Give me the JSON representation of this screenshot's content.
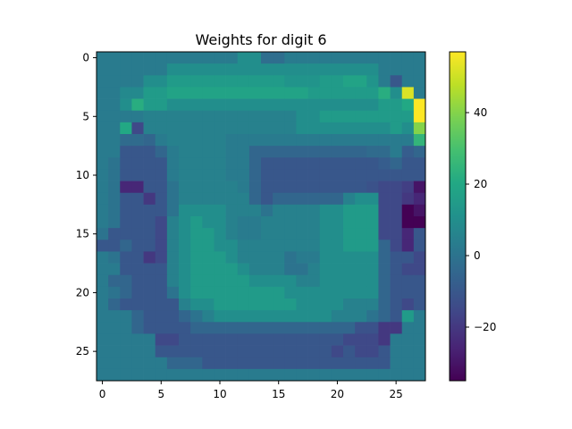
{
  "chart_data": {
    "type": "heatmap",
    "title": "Weights for digit 6",
    "colormap": "viridis",
    "rows": 28,
    "cols": 28,
    "x_ticks": [
      0,
      5,
      10,
      15,
      20,
      25
    ],
    "y_ticks": [
      0,
      5,
      10,
      15,
      20,
      25
    ],
    "colorbar": {
      "min": -35,
      "max": 57,
      "ticks": [
        -20,
        0,
        20,
        40
      ]
    },
    "grid": false,
    "legend": "colorbar-right",
    "values": [
      [
        3,
        3,
        3,
        3,
        3,
        3,
        3,
        3,
        3,
        3,
        3,
        3,
        10,
        10,
        -2,
        -2,
        3,
        3,
        3,
        3,
        3,
        3,
        3,
        3,
        3,
        3,
        3,
        3
      ],
      [
        3,
        3,
        3,
        3,
        3,
        3,
        10,
        10,
        10,
        10,
        10,
        10,
        10,
        10,
        10,
        10,
        10,
        10,
        10,
        10,
        10,
        10,
        10,
        10,
        3,
        3,
        3,
        3
      ],
      [
        3,
        3,
        3,
        3,
        10,
        10,
        15,
        15,
        15,
        15,
        15,
        15,
        15,
        15,
        15,
        15,
        12,
        12,
        12,
        15,
        15,
        18,
        18,
        12,
        3,
        -10,
        3,
        3
      ],
      [
        3,
        3,
        8,
        8,
        15,
        15,
        18,
        18,
        18,
        18,
        18,
        18,
        18,
        18,
        18,
        18,
        18,
        18,
        15,
        15,
        15,
        15,
        15,
        15,
        22,
        10,
        52,
        3
      ],
      [
        3,
        3,
        10,
        22,
        15,
        15,
        10,
        10,
        10,
        10,
        10,
        10,
        10,
        10,
        10,
        10,
        10,
        10,
        10,
        10,
        10,
        10,
        10,
        10,
        15,
        15,
        20,
        57
      ],
      [
        3,
        3,
        3,
        3,
        5,
        5,
        5,
        5,
        5,
        5,
        5,
        5,
        5,
        5,
        5,
        5,
        5,
        10,
        10,
        15,
        15,
        15,
        15,
        15,
        15,
        15,
        15,
        57
      ],
      [
        3,
        3,
        20,
        -15,
        5,
        5,
        5,
        5,
        5,
        5,
        5,
        5,
        5,
        5,
        5,
        5,
        5,
        10,
        10,
        10,
        10,
        10,
        10,
        10,
        10,
        15,
        10,
        40
      ],
      [
        3,
        3,
        -3,
        -3,
        -5,
        3,
        5,
        5,
        5,
        5,
        5,
        3,
        3,
        3,
        3,
        3,
        3,
        3,
        3,
        3,
        3,
        3,
        3,
        3,
        3,
        3,
        3,
        25
      ],
      [
        3,
        3,
        -10,
        -10,
        -10,
        -5,
        3,
        5,
        5,
        5,
        5,
        3,
        3,
        -5,
        -5,
        -5,
        -5,
        -5,
        -5,
        -5,
        -5,
        -5,
        -5,
        -3,
        -3,
        3,
        -8,
        -5
      ],
      [
        3,
        0,
        -10,
        -10,
        -10,
        -10,
        3,
        5,
        5,
        5,
        5,
        3,
        3,
        -5,
        -10,
        -10,
        -10,
        -10,
        -10,
        -10,
        -10,
        -10,
        -10,
        -10,
        -8,
        -5,
        -10,
        -10
      ],
      [
        3,
        0,
        -10,
        -10,
        -10,
        -10,
        3,
        5,
        5,
        5,
        5,
        3,
        3,
        -5,
        -10,
        -10,
        -10,
        -10,
        -10,
        -10,
        -10,
        -10,
        -10,
        -10,
        -10,
        -10,
        -10,
        -10
      ],
      [
        3,
        0,
        -25,
        -25,
        -10,
        -10,
        0,
        5,
        5,
        5,
        5,
        5,
        3,
        -5,
        -10,
        -10,
        -10,
        -10,
        -10,
        -10,
        -10,
        -10,
        -10,
        -12,
        -15,
        -15,
        -18,
        -30
      ],
      [
        3,
        0,
        -10,
        -10,
        -20,
        -10,
        0,
        5,
        5,
        5,
        5,
        5,
        5,
        -5,
        -10,
        -5,
        -5,
        -5,
        -5,
        -5,
        -5,
        5,
        10,
        10,
        -15,
        -15,
        -20,
        -25
      ],
      [
        3,
        0,
        -10,
        -10,
        -10,
        -10,
        0,
        10,
        10,
        10,
        10,
        5,
        5,
        5,
        0,
        5,
        5,
        5,
        5,
        10,
        10,
        15,
        15,
        15,
        -15,
        -15,
        -35,
        -30
      ],
      [
        3,
        0,
        -10,
        -10,
        -10,
        -15,
        5,
        10,
        15,
        10,
        10,
        5,
        3,
        3,
        5,
        5,
        5,
        5,
        5,
        10,
        10,
        15,
        15,
        15,
        -15,
        -15,
        -35,
        -35
      ],
      [
        0,
        -10,
        -10,
        -10,
        -10,
        -15,
        5,
        10,
        15,
        15,
        10,
        5,
        3,
        3,
        5,
        5,
        5,
        5,
        5,
        10,
        10,
        15,
        15,
        15,
        -15,
        -15,
        -25,
        -10
      ],
      [
        -10,
        -10,
        -5,
        -10,
        -10,
        -15,
        5,
        10,
        15,
        15,
        10,
        10,
        5,
        5,
        5,
        5,
        5,
        5,
        5,
        10,
        10,
        15,
        15,
        15,
        -5,
        -15,
        -25,
        -10
      ],
      [
        3,
        0,
        -10,
        -10,
        -20,
        -15,
        5,
        10,
        15,
        15,
        15,
        10,
        5,
        5,
        5,
        5,
        0,
        3,
        3,
        10,
        10,
        10,
        10,
        10,
        -5,
        -10,
        -10,
        -15
      ],
      [
        3,
        3,
        -10,
        -10,
        -10,
        -10,
        5,
        10,
        15,
        15,
        15,
        15,
        10,
        5,
        5,
        5,
        0,
        0,
        5,
        10,
        10,
        10,
        10,
        10,
        -5,
        -10,
        -15,
        -15
      ],
      [
        3,
        -5,
        -5,
        -10,
        -10,
        -10,
        5,
        10,
        15,
        15,
        15,
        15,
        15,
        10,
        10,
        10,
        10,
        5,
        5,
        10,
        10,
        10,
        10,
        10,
        -5,
        -10,
        -10,
        -10
      ],
      [
        3,
        0,
        -5,
        -10,
        -10,
        -10,
        0,
        10,
        15,
        15,
        15,
        15,
        15,
        15,
        15,
        15,
        10,
        10,
        10,
        10,
        10,
        10,
        10,
        10,
        -5,
        -10,
        -10,
        -10
      ],
      [
        3,
        -5,
        -10,
        -10,
        -10,
        -10,
        -10,
        5,
        10,
        10,
        15,
        15,
        15,
        15,
        15,
        15,
        15,
        10,
        10,
        10,
        10,
        5,
        5,
        5,
        -5,
        -10,
        -15,
        -10
      ],
      [
        3,
        3,
        3,
        -5,
        -10,
        -10,
        -10,
        -5,
        0,
        5,
        10,
        10,
        10,
        10,
        10,
        10,
        10,
        10,
        10,
        10,
        5,
        5,
        5,
        0,
        -5,
        -10,
        15,
        3
      ],
      [
        3,
        3,
        3,
        -5,
        -10,
        -10,
        -10,
        -10,
        -5,
        -5,
        -5,
        -5,
        -5,
        -5,
        -5,
        -5,
        -5,
        -5,
        -5,
        -5,
        -5,
        -5,
        -12,
        -12,
        -20,
        -20,
        3,
        3
      ],
      [
        3,
        3,
        3,
        3,
        3,
        -15,
        -15,
        -10,
        -10,
        -10,
        -10,
        -10,
        -10,
        -10,
        -10,
        -10,
        -10,
        -10,
        -10,
        -10,
        -10,
        -15,
        -15,
        -15,
        -20,
        3,
        3,
        3
      ],
      [
        3,
        3,
        3,
        3,
        3,
        -10,
        -10,
        -10,
        -10,
        -10,
        -10,
        -10,
        -10,
        -10,
        -10,
        -10,
        -10,
        -10,
        -10,
        -10,
        -15,
        -10,
        -15,
        -15,
        -10,
        3,
        3,
        3
      ],
      [
        3,
        3,
        3,
        3,
        3,
        3,
        -5,
        -5,
        -5,
        -10,
        -10,
        -10,
        -10,
        -10,
        -10,
        -10,
        -10,
        -10,
        -10,
        -10,
        -10,
        -10,
        -10,
        -10,
        -10,
        3,
        3,
        3
      ],
      [
        3,
        3,
        3,
        3,
        3,
        3,
        3,
        3,
        3,
        3,
        3,
        3,
        3,
        3,
        3,
        3,
        3,
        3,
        3,
        3,
        3,
        3,
        3,
        3,
        3,
        3,
        3,
        3
      ]
    ]
  }
}
